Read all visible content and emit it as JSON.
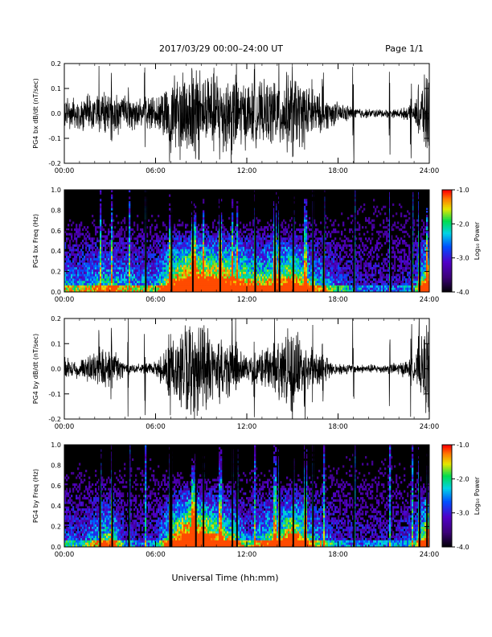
{
  "header": {
    "title": "2017/03/29  00:00–24:00 UT",
    "page": "Page 1/1"
  },
  "xlabel": "Universal Time (hh:mm)",
  "colorbar": {
    "label": "Log₁₀ Power",
    "ticks": [
      "-1.0",
      "-2.0",
      "-3.0",
      "-4.0"
    ],
    "range": [
      -4.0,
      -1.0
    ]
  },
  "chart_data": [
    {
      "type": "line",
      "ylabel": "PG4 bx dB/dt (nT/sec)",
      "x_ticks": [
        "00:00",
        "06:00",
        "12:00",
        "18:00",
        "24:00"
      ],
      "x_range_hours": [
        0,
        24
      ],
      "ylim": [
        -0.2,
        0.2
      ],
      "y_ticks": [
        "0.2",
        "0.1",
        "0.0",
        "-0.1",
        "-0.2"
      ],
      "envelope_hours": [
        0,
        1,
        2,
        3,
        4,
        5,
        6,
        7,
        8,
        9,
        10,
        11,
        12,
        13,
        14,
        15,
        16,
        17,
        18,
        19,
        20,
        21,
        22,
        23,
        24
      ],
      "envelope_amplitude": [
        0.08,
        0.07,
        0.09,
        0.1,
        0.08,
        0.07,
        0.07,
        0.17,
        0.22,
        0.21,
        0.2,
        0.19,
        0.15,
        0.14,
        0.16,
        0.19,
        0.12,
        0.08,
        0.05,
        0.03,
        0.02,
        0.02,
        0.02,
        0.04,
        0.22
      ]
    },
    {
      "type": "heatmap",
      "ylabel": "PG4 bx Freq (Hz)",
      "x_ticks": [
        "00:00",
        "06:00",
        "12:00",
        "18:00",
        "24:00"
      ],
      "ylim": [
        0.0,
        1.0
      ],
      "y_ticks": [
        "1.0",
        "0.8",
        "0.6",
        "0.4",
        "0.2",
        "0.0"
      ],
      "colorbar_range_log10": [
        -4.0,
        -1.0
      ]
    },
    {
      "type": "line",
      "ylabel": "PG4 by dB/dt (nT/sec)",
      "x_ticks": [
        "00:00",
        "06:00",
        "12:00",
        "18:00",
        "24:00"
      ],
      "x_range_hours": [
        0,
        24
      ],
      "ylim": [
        -0.2,
        0.2
      ],
      "y_ticks": [
        "0.2",
        "0.1",
        "0.0",
        "-0.1",
        "-0.2"
      ],
      "envelope_hours": [
        0,
        1,
        2,
        3,
        4,
        5,
        6,
        7,
        8,
        9,
        10,
        11,
        12,
        13,
        14,
        15,
        16,
        17,
        18,
        19,
        20,
        21,
        22,
        23,
        24
      ],
      "envelope_amplitude": [
        0.05,
        0.04,
        0.08,
        0.12,
        0.03,
        0.02,
        0.03,
        0.14,
        0.22,
        0.21,
        0.15,
        0.13,
        0.05,
        0.1,
        0.12,
        0.2,
        0.1,
        0.06,
        0.03,
        0.02,
        0.02,
        0.02,
        0.03,
        0.05,
        0.22
      ]
    },
    {
      "type": "heatmap",
      "ylabel": "PG4 by Freq (Hz)",
      "x_ticks": [
        "00:00",
        "06:00",
        "12:00",
        "18:00",
        "24:00"
      ],
      "ylim": [
        0.0,
        1.0
      ],
      "y_ticks": [
        "1.0",
        "0.8",
        "0.6",
        "0.4",
        "0.2",
        "0.0"
      ],
      "colorbar_range_log10": [
        -4.0,
        -1.0
      ]
    }
  ]
}
